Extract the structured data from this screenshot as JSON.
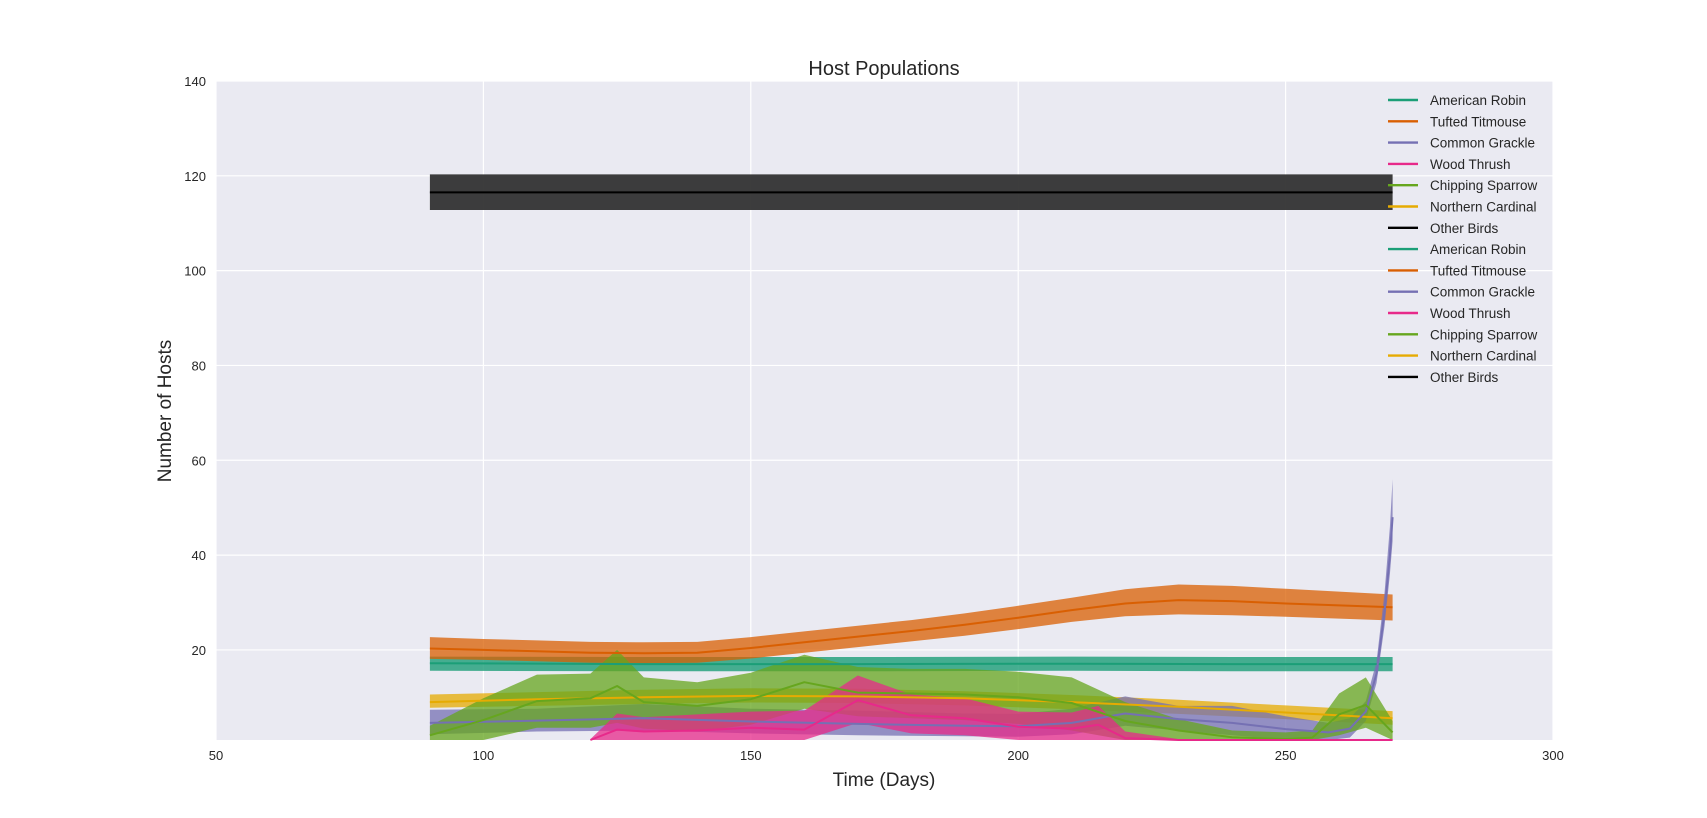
{
  "chart_data": {
    "type": "line",
    "title": "Host Populations",
    "xlabel": "Time (Days)",
    "ylabel": "Number of Hosts",
    "xlim": [
      50,
      300
    ],
    "ylim": [
      1,
      140
    ],
    "xticks": [
      50,
      100,
      150,
      200,
      250,
      300
    ],
    "yticks": [
      20,
      40,
      60,
      80,
      100,
      120,
      140
    ],
    "xtick_labels": [
      "50",
      "100",
      "150",
      "200",
      "250",
      "300"
    ],
    "ytick_labels": [
      "20",
      "40",
      "60",
      "80",
      "100",
      "120",
      "140"
    ],
    "grid": true,
    "legend_position": "top-right",
    "colors": {
      "plot_background": "#EAEAF2",
      "grid": "#FFFFFF"
    },
    "legend": [
      {
        "label": "American Robin",
        "color": "#1B9E77"
      },
      {
        "label": "Tufted Titmouse",
        "color": "#D95F02"
      },
      {
        "label": "Common Grackle",
        "color": "#7570B3"
      },
      {
        "label": "Wood Thrush",
        "color": "#E7298A"
      },
      {
        "label": "Chipping Sparrow",
        "color": "#66A61E"
      },
      {
        "label": "Northern Cardinal",
        "color": "#E6AB02"
      },
      {
        "label": "Other Birds",
        "color": "#000000"
      },
      {
        "label": "American Robin",
        "color": "#1B9E77"
      },
      {
        "label": "Tufted Titmouse",
        "color": "#D95F02"
      },
      {
        "label": "Common Grackle",
        "color": "#7570B3"
      },
      {
        "label": "Wood Thrush",
        "color": "#E7298A"
      },
      {
        "label": "Chipping Sparrow",
        "color": "#66A61E"
      },
      {
        "label": "Northern Cardinal",
        "color": "#E6AB02"
      },
      {
        "label": "Other Birds",
        "color": "#000000"
      }
    ],
    "series": [
      {
        "name": "Other Birds",
        "color": "#000000",
        "band_color": "#333333",
        "band_opacity": 0.95,
        "x": [
          90,
          270
        ],
        "y": [
          116.5,
          116.5
        ],
        "lower": [
          112.8,
          112.8
        ],
        "upper": [
          120.3,
          120.3
        ]
      },
      {
        "name": "American Robin",
        "color": "#1B9E77",
        "band_color": "#1B9E77",
        "band_opacity": 0.8,
        "x": [
          90,
          130,
          170,
          210,
          240,
          270
        ],
        "y": [
          17.2,
          17.0,
          17.0,
          17.1,
          17.0,
          17.0
        ],
        "lower": [
          15.6,
          15.5,
          15.5,
          15.6,
          15.5,
          15.5
        ],
        "upper": [
          18.6,
          18.5,
          18.5,
          18.6,
          18.5,
          18.5
        ]
      },
      {
        "name": "Tufted Titmouse",
        "color": "#D95F02",
        "band_color": "#D95F02",
        "band_opacity": 0.75,
        "x": [
          90,
          100,
          110,
          120,
          130,
          140,
          150,
          160,
          170,
          180,
          190,
          200,
          210,
          220,
          230,
          240,
          250,
          260,
          270
        ],
        "y": [
          20.3,
          20.0,
          19.7,
          19.4,
          19.3,
          19.4,
          20.4,
          21.6,
          22.8,
          24.0,
          25.3,
          26.8,
          28.4,
          29.8,
          30.5,
          30.3,
          29.8,
          29.4,
          29.0
        ],
        "lower": [
          18.1,
          17.9,
          17.6,
          17.3,
          17.2,
          17.3,
          18.2,
          19.4,
          20.6,
          21.8,
          23.0,
          24.4,
          25.9,
          27.1,
          27.5,
          27.3,
          27.0,
          26.6,
          26.2
        ],
        "upper": [
          22.7,
          22.3,
          22.0,
          21.7,
          21.6,
          21.7,
          22.7,
          23.9,
          25.1,
          26.3,
          27.7,
          29.3,
          31.0,
          32.8,
          33.8,
          33.5,
          32.9,
          32.3,
          31.7
        ]
      },
      {
        "name": "Northern Cardinal",
        "color": "#E6AB02",
        "band_color": "#E6AB02",
        "band_opacity": 0.75,
        "x": [
          90,
          110,
          130,
          150,
          170,
          190,
          210,
          230,
          250,
          270
        ],
        "y": [
          9.0,
          9.6,
          10.0,
          10.3,
          10.2,
          9.8,
          9.0,
          8.0,
          6.8,
          5.6
        ],
        "lower": [
          7.8,
          8.2,
          8.6,
          8.9,
          8.8,
          8.3,
          7.5,
          6.5,
          5.4,
          4.2
        ],
        "upper": [
          10.6,
          11.1,
          11.6,
          11.9,
          11.8,
          11.3,
          10.5,
          9.5,
          8.3,
          7.1
        ]
      },
      {
        "name": "Common Grackle",
        "color": "#7570B3",
        "band_color": "#7570B3",
        "band_opacity": 0.75,
        "x": [
          90,
          110,
          130,
          150,
          170,
          190,
          200,
          210,
          220,
          230,
          240,
          250,
          258,
          262,
          265,
          267,
          268.5,
          269.5,
          270
        ],
        "y": [
          4.6,
          5.1,
          5.6,
          4.9,
          4.4,
          4.0,
          3.9,
          4.6,
          6.6,
          5.4,
          4.6,
          3.3,
          2.6,
          3.4,
          7.0,
          15.0,
          28.0,
          40.0,
          48.0
        ],
        "lower": [
          2.2,
          2.8,
          3.0,
          2.4,
          2.0,
          1.8,
          1.7,
          2.2,
          4.0,
          3.0,
          2.0,
          1.1,
          1.0,
          1.5,
          5.0,
          13.0,
          25.0,
          36.0,
          43.0
        ],
        "upper": [
          7.4,
          7.6,
          8.6,
          7.6,
          7.2,
          6.6,
          6.5,
          7.6,
          10.2,
          8.2,
          8.2,
          6.0,
          4.6,
          5.6,
          9.2,
          17.5,
          32.0,
          46.0,
          56.0
        ]
      },
      {
        "name": "Chipping Sparrow",
        "color": "#66A61E",
        "band_color": "#66A61E",
        "band_opacity": 0.75,
        "x": [
          90,
          100,
          110,
          120,
          125,
          130,
          140,
          150,
          160,
          170,
          180,
          190,
          200,
          210,
          220,
          230,
          240,
          250,
          255,
          260,
          265,
          270
        ],
        "y": [
          2.0,
          5.2,
          9.2,
          9.8,
          12.4,
          9.0,
          8.2,
          9.6,
          13.2,
          11.0,
          10.8,
          10.6,
          10.0,
          8.8,
          5.0,
          3.0,
          1.6,
          1.2,
          1.5,
          6.4,
          8.4,
          2.6
        ],
        "lower": [
          1.0,
          1.0,
          3.6,
          3.6,
          4.6,
          3.4,
          2.8,
          4.2,
          7.6,
          6.0,
          5.6,
          5.2,
          4.4,
          3.0,
          1.0,
          1.0,
          1.0,
          1.0,
          1.0,
          2.0,
          3.6,
          1.0
        ],
        "upper": [
          4.0,
          9.8,
          14.8,
          15.0,
          20.0,
          14.2,
          13.2,
          15.2,
          19.0,
          16.4,
          16.0,
          16.0,
          15.4,
          14.2,
          9.0,
          5.4,
          3.0,
          2.6,
          3.0,
          10.8,
          14.2,
          5.0
        ]
      },
      {
        "name": "Wood Thrush",
        "color": "#E7298A",
        "band_color": "#E7298A",
        "band_opacity": 0.75,
        "x": [
          120,
          125,
          130,
          140,
          150,
          160,
          170,
          180,
          190,
          200,
          210,
          215,
          220,
          230,
          240,
          250,
          260,
          270
        ],
        "y": [
          1.0,
          3.2,
          2.8,
          3.0,
          3.6,
          3.2,
          9.4,
          6.2,
          5.6,
          3.8,
          3.4,
          4.2,
          1.4,
          1.0,
          1.0,
          1.0,
          1.0,
          1.0
        ],
        "lower": [
          1.0,
          1.0,
          1.0,
          1.0,
          1.0,
          1.0,
          4.6,
          2.4,
          2.0,
          1.0,
          1.0,
          1.0,
          1.0,
          1.0,
          1.0,
          1.0,
          1.0,
          1.0
        ],
        "upper": [
          1.2,
          6.6,
          5.8,
          6.4,
          7.0,
          7.2,
          14.6,
          10.6,
          9.8,
          7.0,
          6.8,
          8.2,
          2.8,
          1.2,
          1.0,
          1.0,
          1.0,
          1.0
        ]
      }
    ]
  }
}
